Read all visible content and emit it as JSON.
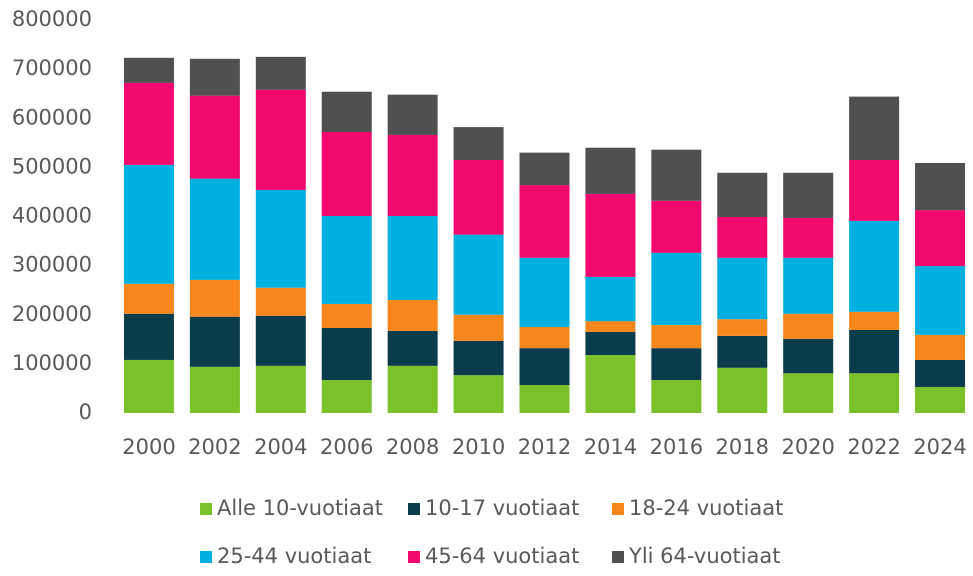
{
  "chart_data": {
    "type": "stacked_bar",
    "categories": [
      "2000",
      "2002",
      "2004",
      "2006",
      "2008",
      "2010",
      "2012",
      "2014",
      "2016",
      "2018",
      "2020",
      "2022",
      "2024"
    ],
    "series": [
      {
        "name": "Alle 10-vuotiaat",
        "color": "#7ac12a",
        "values": [
          108000,
          94000,
          96000,
          67000,
          96000,
          77000,
          57000,
          118000,
          67000,
          92000,
          81000,
          81000,
          53000
        ]
      },
      {
        "name": "10-17 vuotiaat",
        "color": "#0b3c4c",
        "values": [
          94000,
          102000,
          102000,
          106000,
          71000,
          70000,
          75000,
          47000,
          65000,
          65000,
          70000,
          88000,
          55000
        ]
      },
      {
        "name": "18-24 vuotiaat",
        "color": "#f7861d",
        "values": [
          61000,
          75000,
          57000,
          49000,
          63000,
          53000,
          43000,
          22000,
          47000,
          34000,
          51000,
          37000,
          51000
        ]
      },
      {
        "name": "25-44 vuotiaat",
        "color": "#00b0e0",
        "values": [
          242000,
          206000,
          199000,
          179000,
          171000,
          163000,
          141000,
          90000,
          147000,
          125000,
          114000,
          185000,
          140000
        ]
      },
      {
        "name": "45-64 vuotiaat",
        "color": "#f2096e",
        "values": [
          167000,
          169000,
          204000,
          171000,
          165000,
          152000,
          148000,
          169000,
          106000,
          83000,
          81000,
          124000,
          114000
        ]
      },
      {
        "name": "Yli 64-vuotiaat",
        "color": "#505050",
        "values": [
          51000,
          75000,
          67000,
          82000,
          82000,
          67000,
          66000,
          94000,
          104000,
          90000,
          92000,
          129000,
          96000
        ]
      }
    ],
    "ylim": [
      0,
      800000
    ],
    "yticks": [
      0,
      100000,
      200000,
      300000,
      400000,
      500000,
      600000,
      700000,
      800000
    ],
    "grid": false,
    "legend": "bottom"
  }
}
